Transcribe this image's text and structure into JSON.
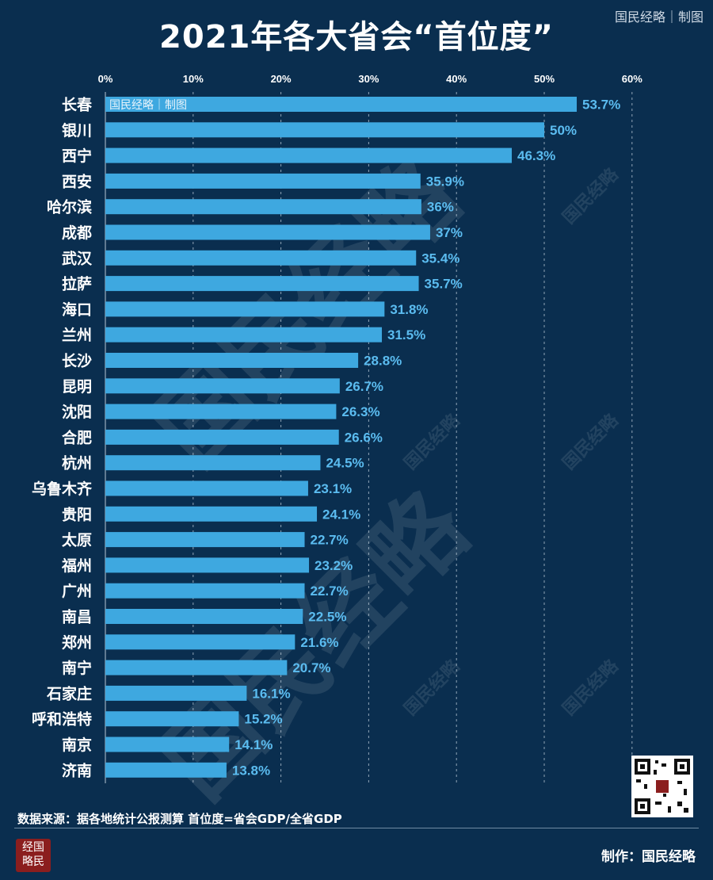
{
  "header": {
    "title": "2021年各大省会“首位度”",
    "credit": "国民经略｜制图"
  },
  "watermarks": {
    "large_text": "国民经略",
    "small_text": "国民经略"
  },
  "footer": {
    "source": "数据来源：据各地统计公报测算  首位度=省会GDP/全省GDP",
    "maker": "制作：国民经略",
    "logo_lines": [
      "经国",
      "略民"
    ]
  },
  "colors": {
    "background": "#0a2e4f",
    "bar": "#3ea8e0",
    "label": "#5bbcf0",
    "axis_text": "#ffffff",
    "grid": "#c9d6e2"
  },
  "chart_data": {
    "type": "bar",
    "orientation": "horizontal",
    "title": "2021年各大省会“首位度”",
    "xlim": [
      0,
      60
    ],
    "x_ticks": [
      "0%",
      "10%",
      "20%",
      "30%",
      "40%",
      "50%",
      "60%"
    ],
    "x_tick_values": [
      0,
      10,
      20,
      30,
      40,
      50,
      60
    ],
    "grid": "vertical-dashed",
    "categories": [
      "长春",
      "银川",
      "西宁",
      "西安",
      "哈尔滨",
      "成都",
      "武汉",
      "拉萨",
      "海口",
      "兰州",
      "长沙",
      "昆明",
      "沈阳",
      "合肥",
      "杭州",
      "乌鲁木齐",
      "贵阳",
      "太原",
      "福州",
      "广州",
      "南昌",
      "郑州",
      "南宁",
      "石家庄",
      "呼和浩特",
      "南京",
      "济南"
    ],
    "values": [
      53.7,
      50,
      46.3,
      35.9,
      36,
      37,
      35.4,
      35.7,
      31.8,
      31.5,
      28.8,
      26.7,
      26.3,
      26.6,
      24.5,
      23.1,
      24.1,
      22.7,
      23.2,
      22.7,
      22.5,
      21.6,
      20.7,
      16.1,
      15.2,
      14.1,
      13.8
    ],
    "value_labels": [
      "53.7%",
      "50%",
      "46.3%",
      "35.9%",
      "36%",
      "37%",
      "35.4%",
      "35.7%",
      "31.8%",
      "31.5%",
      "28.8%",
      "26.7%",
      "26.3%",
      "26.6%",
      "24.5%",
      "23.1%",
      "24.1%",
      "22.7%",
      "23.2%",
      "22.7%",
      "22.5%",
      "21.6%",
      "20.7%",
      "16.1%",
      "15.2%",
      "14.1%",
      "13.8%"
    ]
  }
}
